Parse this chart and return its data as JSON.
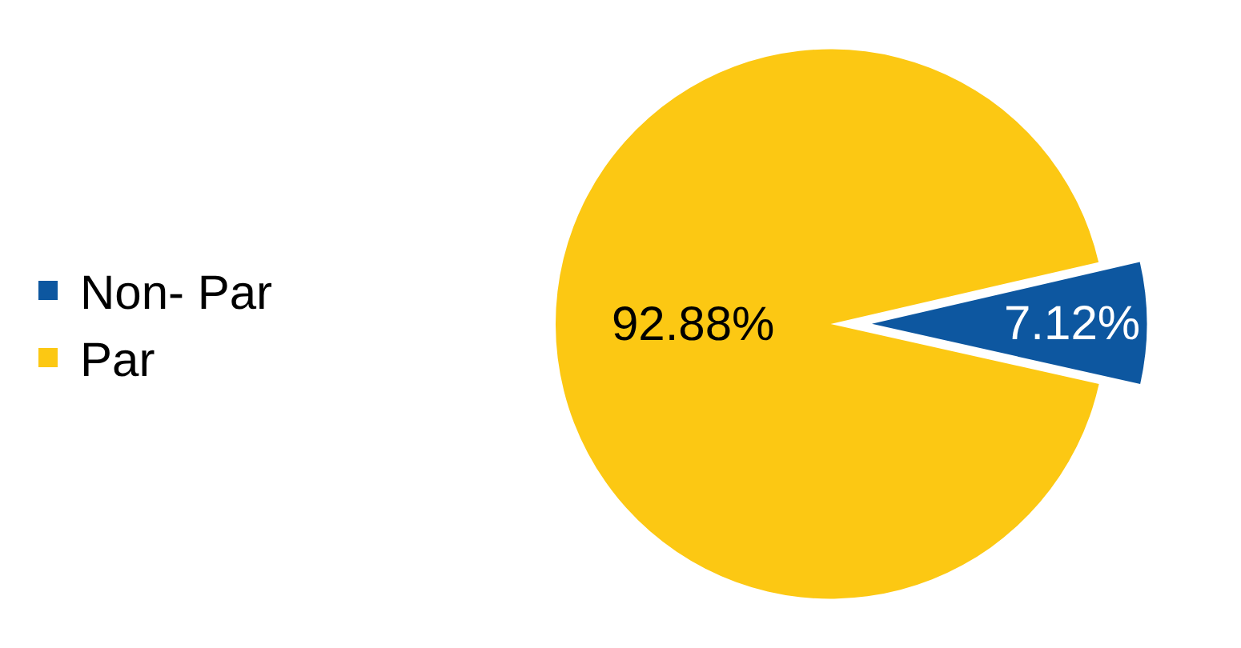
{
  "chart_data": {
    "type": "pie",
    "categories": [
      "Non- Par",
      "Par"
    ],
    "values": [
      7.12,
      92.88
    ],
    "colors": [
      "#0d57a0",
      "#fcc813"
    ],
    "value_labels": [
      "7.12%",
      "92.88%"
    ],
    "legend": "left"
  }
}
